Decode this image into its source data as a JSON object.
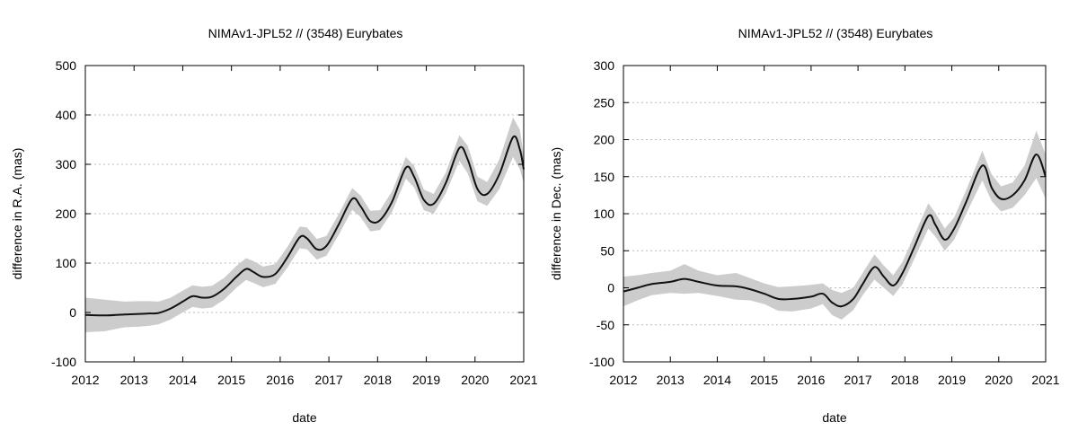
{
  "chart_data": [
    {
      "type": "line",
      "title": "NIMAv1-JPL52 // (3548) Eurybates",
      "xlabel": "date",
      "ylabel": "difference in R.A. (mas)",
      "xlim": [
        2012,
        2021
      ],
      "ylim": [
        -100,
        500
      ],
      "xticks": [
        "2012",
        "2013",
        "2014",
        "2015",
        "2016",
        "2017",
        "2018",
        "2019",
        "2020",
        "2021"
      ],
      "yticks": [
        "-100",
        "0",
        "100",
        "200",
        "300",
        "400",
        "500"
      ],
      "grid": "horizontal dotted",
      "series": [
        {
          "name": "difference",
          "color": "#111111",
          "band_color": "#cccccc",
          "x": [
            2012.0,
            2012.4,
            2012.8,
            2013.1,
            2013.3,
            2013.5,
            2013.75,
            2014.0,
            2014.2,
            2014.4,
            2014.6,
            2014.85,
            2015.1,
            2015.3,
            2015.45,
            2015.65,
            2015.9,
            2016.15,
            2016.4,
            2016.55,
            2016.75,
            2016.95,
            2017.2,
            2017.48,
            2017.65,
            2017.85,
            2018.05,
            2018.3,
            2018.58,
            2018.75,
            2018.95,
            2019.15,
            2019.4,
            2019.68,
            2019.85,
            2020.05,
            2020.25,
            2020.5,
            2020.78,
            2020.92,
            2021.0
          ],
          "values": [
            -5,
            -6,
            -4,
            -3,
            -2,
            -1,
            8,
            22,
            33,
            30,
            32,
            48,
            72,
            88,
            82,
            72,
            78,
            112,
            152,
            150,
            128,
            135,
            178,
            230,
            215,
            185,
            187,
            225,
            293,
            275,
            228,
            220,
            262,
            333,
            310,
            250,
            240,
            280,
            355,
            330,
            290
          ],
          "band_halfwidth": [
            35,
            32,
            26,
            26,
            25,
            23,
            22,
            22,
            22,
            22,
            22,
            22,
            22,
            22,
            22,
            21,
            20,
            21,
            22,
            22,
            21,
            20,
            21,
            22,
            22,
            21,
            20,
            21,
            22,
            22,
            21,
            20,
            21,
            26,
            28,
            25,
            24,
            30,
            40,
            40,
            28
          ]
        }
      ]
    },
    {
      "type": "line",
      "title": "NIMAv1-JPL52 // (3548) Eurybates",
      "xlabel": "date",
      "ylabel": "difference in Dec. (mas)",
      "xlim": [
        2012,
        2021
      ],
      "ylim": [
        -100,
        300
      ],
      "xticks": [
        "2012",
        "2013",
        "2014",
        "2015",
        "2016",
        "2017",
        "2018",
        "2019",
        "2020",
        "2021"
      ],
      "yticks": [
        "-100",
        "-50",
        "0",
        "50",
        "100",
        "150",
        "200",
        "250",
        "300"
      ],
      "grid": "horizontal dotted",
      "series": [
        {
          "name": "difference",
          "color": "#111111",
          "band_color": "#cccccc",
          "x": [
            2012.0,
            2012.3,
            2012.6,
            2013.0,
            2013.3,
            2013.6,
            2014.0,
            2014.4,
            2014.7,
            2015.0,
            2015.3,
            2015.6,
            2016.0,
            2016.25,
            2016.45,
            2016.65,
            2016.9,
            2017.1,
            2017.35,
            2017.55,
            2017.75,
            2017.95,
            2018.2,
            2018.5,
            2018.65,
            2018.85,
            2019.05,
            2019.3,
            2019.65,
            2019.85,
            2020.05,
            2020.3,
            2020.55,
            2020.8,
            2021.0
          ],
          "values": [
            -5,
            0,
            5,
            8,
            12,
            8,
            3,
            2,
            -2,
            -8,
            -15,
            -15,
            -12,
            -8,
            -20,
            -25,
            -15,
            5,
            28,
            15,
            3,
            20,
            55,
            97,
            85,
            65,
            80,
            115,
            165,
            135,
            120,
            125,
            145,
            180,
            150
          ],
          "band_halfwidth": [
            20,
            17,
            15,
            15,
            20,
            15,
            14,
            18,
            15,
            14,
            16,
            17,
            16,
            14,
            17,
            18,
            15,
            15,
            17,
            15,
            14,
            15,
            16,
            17,
            16,
            15,
            15,
            16,
            20,
            18,
            17,
            17,
            20,
            32,
            30
          ]
        }
      ]
    }
  ]
}
